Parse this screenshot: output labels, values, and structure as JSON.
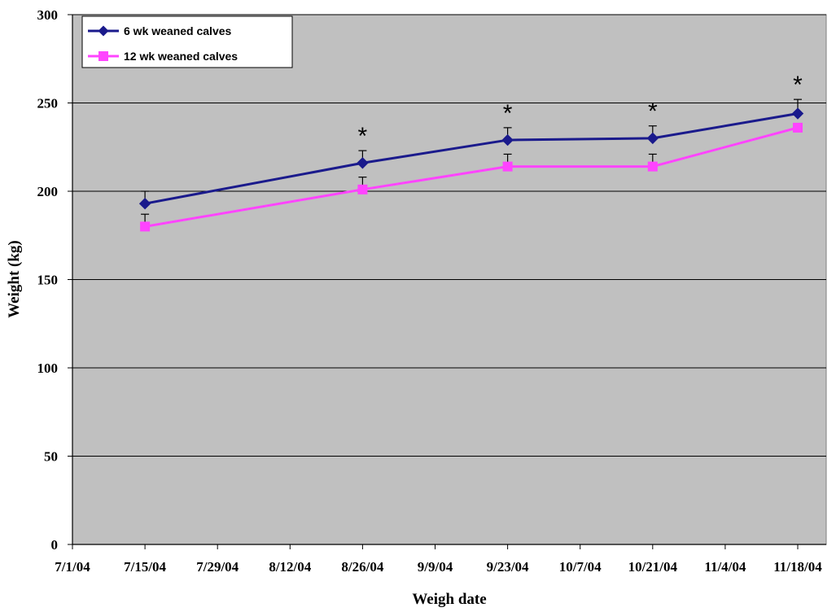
{
  "chart_data": {
    "type": "line",
    "title": "",
    "xlabel": "Weigh date",
    "ylabel": "Weight (kg)",
    "ylim": [
      0,
      300
    ],
    "yticks": [
      0,
      50,
      100,
      150,
      200,
      250,
      300
    ],
    "xticks": [
      "7/1/04",
      "7/15/04",
      "7/29/04",
      "8/12/04",
      "8/26/04",
      "9/9/04",
      "9/23/04",
      "10/7/04",
      "10/21/04",
      "11/4/04",
      "11/18/04"
    ],
    "x": [
      "7/15/04",
      "8/26/04",
      "9/23/04",
      "10/21/04",
      "11/18/04"
    ],
    "series": [
      {
        "name": "6 wk weaned calves",
        "color": "#1a1a8c",
        "marker": "diamond",
        "values": [
          193,
          216,
          229,
          230,
          244
        ],
        "error": [
          7,
          7,
          7,
          7,
          8
        ]
      },
      {
        "name": "12 wk weaned calves",
        "color": "#ff44ff",
        "marker": "square",
        "values": [
          180,
          201,
          214,
          214,
          236
        ],
        "error": [
          7,
          7,
          7,
          7,
          0
        ]
      }
    ],
    "annotations": [
      {
        "text": "*",
        "x": "8/26/04"
      },
      {
        "text": "*",
        "x": "9/23/04"
      },
      {
        "text": "*",
        "x": "10/21/04"
      },
      {
        "text": "*",
        "x": "11/18/04"
      }
    ],
    "grid": true,
    "plot_background": "#c0c0c0",
    "legend": "top-left"
  }
}
